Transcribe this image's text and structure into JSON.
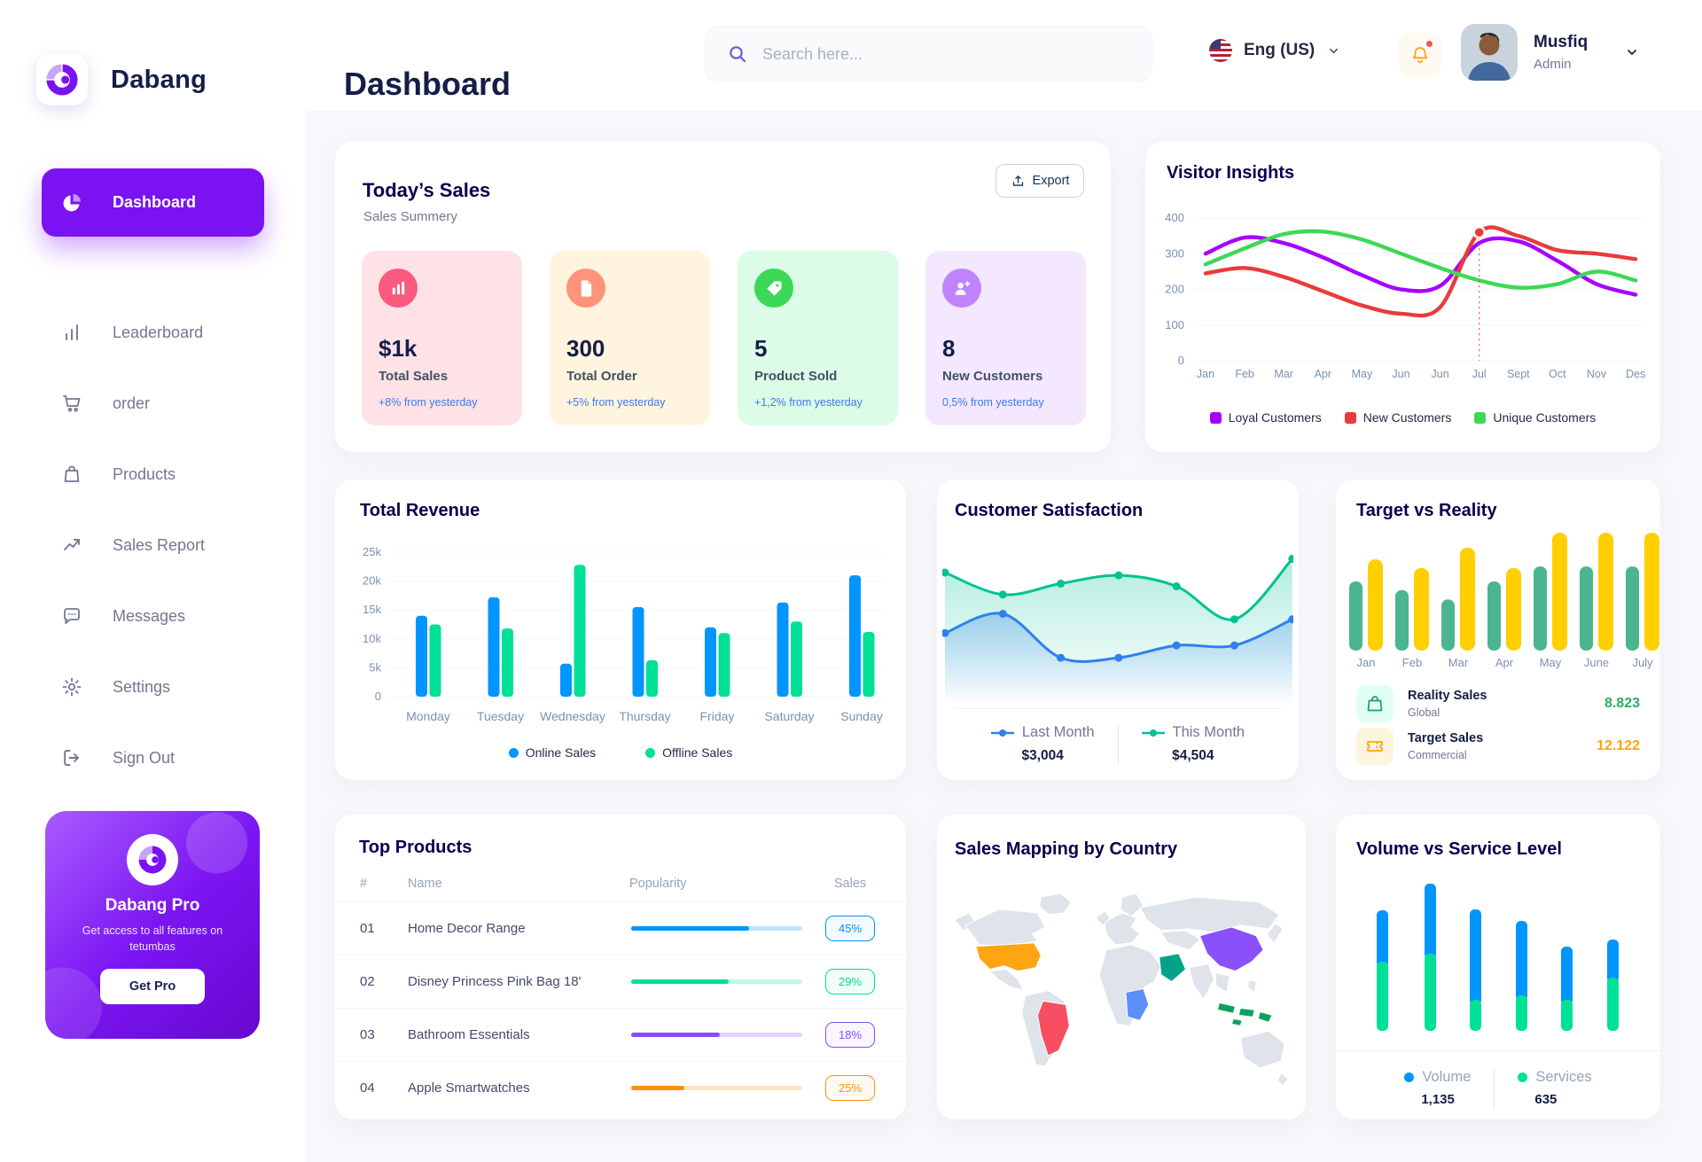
{
  "brand": {
    "name": "Dabang"
  },
  "sidebar": {
    "items": [
      {
        "label": "Dashboard",
        "icon": "dashboard-icon",
        "active": true
      },
      {
        "label": "Leaderboard",
        "icon": "leaderboard-icon",
        "active": false
      },
      {
        "label": "order",
        "icon": "order-icon",
        "active": false
      },
      {
        "label": "Products",
        "icon": "products-icon",
        "active": false
      },
      {
        "label": "Sales Report",
        "icon": "sales-report-icon",
        "active": false
      },
      {
        "label": "Messages",
        "icon": "messages-icon",
        "active": false
      },
      {
        "label": "Settings",
        "icon": "settings-icon",
        "active": false
      },
      {
        "label": "Sign Out",
        "icon": "signout-icon",
        "active": false
      }
    ],
    "pro": {
      "title": "Dabang Pro",
      "subtitle": "Get access to all features on tetumbas",
      "button_label": "Get Pro"
    }
  },
  "header": {
    "page_title": "Dashboard",
    "search_placeholder": "Search here...",
    "language": "Eng (US)",
    "user": {
      "name": "Musfiq",
      "role": "Admin"
    }
  },
  "today_sales": {
    "title": "Today’s Sales",
    "subtitle": "Sales Summery",
    "export_label": "Export",
    "stats": [
      {
        "value": "$1k",
        "label": "Total Sales",
        "delta": "+8% from yesterday",
        "card_bg": "#FFE2E5",
        "icon_bg": "#FA5A7D",
        "icon": "bar-chart-icon"
      },
      {
        "value": "300",
        "label": "Total Order",
        "delta": "+5% from yesterday",
        "card_bg": "#FFF4DE",
        "icon_bg": "#FF947A",
        "icon": "file-icon"
      },
      {
        "value": "5",
        "label": "Product Sold",
        "delta": "+1,2% from yesterday",
        "card_bg": "#DCFCE7",
        "icon_bg": "#3CD856",
        "icon": "tag-icon"
      },
      {
        "value": "8",
        "label": "New Customers",
        "delta": "0,5% from yesterday",
        "card_bg": "#F3E8FF",
        "icon_bg": "#BF83FF",
        "icon": "user-plus-icon"
      }
    ]
  },
  "chart_data": [
    {
      "id": "visitor_insights",
      "type": "line",
      "title": "Visitor Insights",
      "x": [
        "Jan",
        "Feb",
        "Mar",
        "Apr",
        "May",
        "Jun",
        "Jun",
        "Jul",
        "Sept",
        "Oct",
        "Nov",
        "Des"
      ],
      "ylim": [
        0,
        400
      ],
      "yticks": [
        0,
        100,
        200,
        300,
        400
      ],
      "grid": true,
      "legend_position": "bottom",
      "marker": {
        "series": "New Customers",
        "x_index": 7
      },
      "series": [
        {
          "name": "Loyal Customers",
          "color": "#A700FF",
          "values": [
            300,
            345,
            330,
            290,
            240,
            200,
            210,
            330,
            335,
            280,
            215,
            185
          ]
        },
        {
          "name": "New Customers",
          "color": "#E93B3B",
          "values": [
            245,
            260,
            235,
            195,
            155,
            132,
            150,
            360,
            350,
            310,
            300,
            285
          ]
        },
        {
          "name": "Unique Customers",
          "color": "#3CD856",
          "values": [
            270,
            315,
            355,
            362,
            340,
            300,
            260,
            225,
            205,
            215,
            250,
            225
          ]
        }
      ]
    },
    {
      "id": "total_revenue",
      "type": "bar",
      "title": "Total Revenue",
      "categories": [
        "Monday",
        "Tuesday",
        "Wednesday",
        "Thursday",
        "Friday",
        "Saturday",
        "Sunday"
      ],
      "ylim": [
        0,
        25
      ],
      "yticks": [
        "0",
        "5k",
        "10k",
        "15k",
        "20k",
        "25k"
      ],
      "unit": "k",
      "legend_position": "bottom",
      "series": [
        {
          "name": "Online Sales",
          "color": "#0095FF",
          "values": [
            14,
            17.2,
            5.7,
            15.5,
            12,
            16.3,
            21
          ]
        },
        {
          "name": "Offline Sales",
          "color": "#00E096",
          "values": [
            12.5,
            11.8,
            22.8,
            6.3,
            11,
            13,
            11.2
          ]
        }
      ]
    },
    {
      "id": "customer_satisfaction",
      "type": "area",
      "title": "Customer Satisfaction",
      "ylim": [
        0,
        100
      ],
      "series": [
        {
          "name": "Last Month",
          "color": "#2F80ED",
          "total": "$3,004",
          "values": [
            36,
            50,
            18,
            18,
            27,
            27,
            46
          ]
        },
        {
          "name": "This Month",
          "color": "#00C292",
          "total": "$4,504",
          "values": [
            80,
            64,
            72,
            78,
            70,
            46,
            90
          ]
        }
      ]
    },
    {
      "id": "target_vs_reality",
      "type": "bar",
      "title": "Target vs Reality",
      "categories": [
        "Jan",
        "Feb",
        "Mar",
        "Apr",
        "May",
        "June",
        "July"
      ],
      "ylim": [
        0,
        15
      ],
      "series": [
        {
          "name": "Reality Sales",
          "subtitle": "Global",
          "color": "#4AB58E",
          "icon_bg": "#E2FFF3",
          "summary_value": "8.823",
          "summary_color": "#27AE60",
          "values": [
            8.8,
            7.7,
            6.5,
            8.8,
            10.7,
            10.7,
            10.7
          ]
        },
        {
          "name": "Target Sales",
          "subtitle": "Commercial",
          "color": "#FFCF00",
          "icon_bg": "#FFF4DE",
          "summary_value": "12.122",
          "summary_color": "#FFA412",
          "values": [
            11.6,
            10.5,
            13.1,
            10.5,
            15,
            15,
            15
          ]
        }
      ]
    },
    {
      "id": "top_products",
      "type": "table",
      "title": "Top Products",
      "columns": [
        "#",
        "Name",
        "Popularity",
        "Sales"
      ],
      "rows": [
        {
          "num": "01",
          "name": "Home Decor Range",
          "popularity_pct": 69,
          "sales": "45%",
          "color": "#0095FF"
        },
        {
          "num": "02",
          "name": "Disney Princess Pink Bag 18'",
          "popularity_pct": 57,
          "sales": "29%",
          "color": "#00E096"
        },
        {
          "num": "03",
          "name": "Bathroom Essentials",
          "popularity_pct": 52,
          "sales": "18%",
          "color": "#884DFF"
        },
        {
          "num": "04",
          "name": "Apple Smartwatches",
          "popularity_pct": 31,
          "sales": "25%",
          "color": "#FF8F0D"
        }
      ]
    },
    {
      "id": "sales_mapping",
      "type": "map",
      "title": "Sales Mapping by Country",
      "countries": [
        {
          "name": "United States",
          "color": "#FFA412"
        },
        {
          "name": "Brazil",
          "color": "#F64E60"
        },
        {
          "name": "DR Congo",
          "color": "#5B8FF9"
        },
        {
          "name": "Saudi Arabia",
          "color": "#00A389"
        },
        {
          "name": "China",
          "color": "#8950FC"
        },
        {
          "name": "Indonesia",
          "color": "#0AA25F"
        }
      ]
    },
    {
      "id": "volume_service",
      "type": "stacked-bar",
      "title": "Volume vs Service Level",
      "legend_position": "bottom",
      "series": [
        {
          "name": "Volume",
          "color": "#0095FF",
          "total": "1,135",
          "values": [
            58,
            79,
            102,
            84,
            60,
            43
          ]
        },
        {
          "name": "Services",
          "color": "#00E096",
          "total": "635",
          "values": [
            78,
            87,
            35,
            40,
            35,
            60
          ]
        }
      ]
    }
  ]
}
